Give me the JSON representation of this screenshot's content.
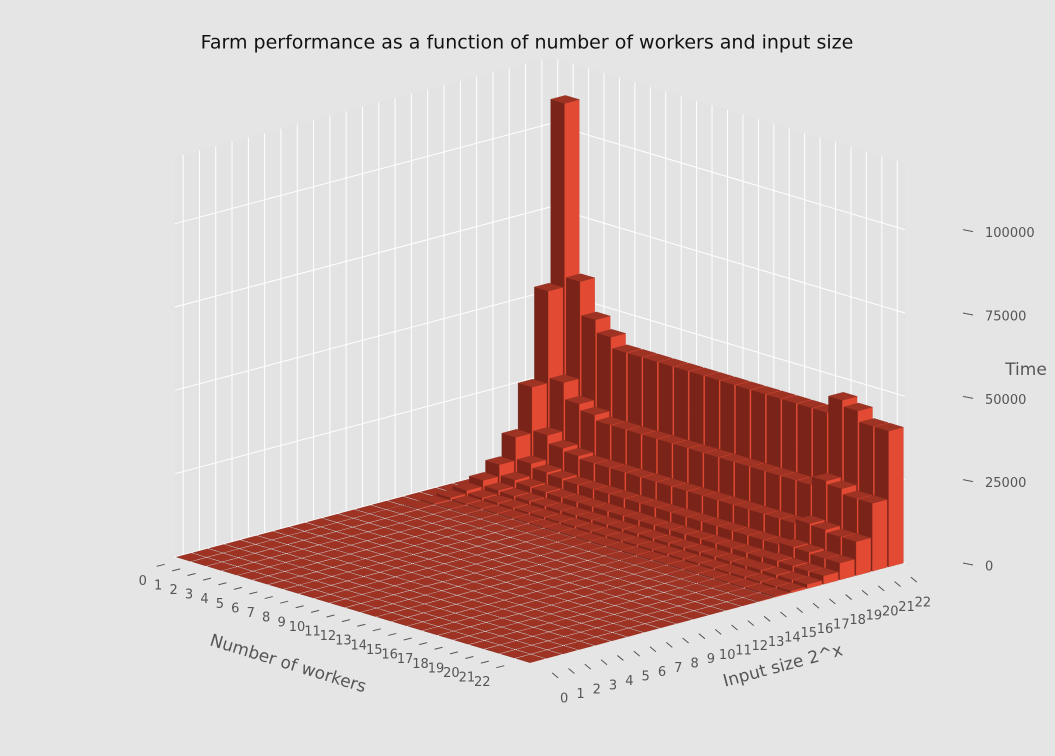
{
  "chart_data": {
    "type": "bar3d",
    "title": "Farm performance as a function of number of workers and input size",
    "xlabel": "Number of workers",
    "ylabel": "Input size 2^x",
    "zlabel": "Time",
    "xticks": [
      0,
      1,
      2,
      3,
      4,
      5,
      6,
      7,
      8,
      9,
      10,
      11,
      12,
      13,
      14,
      15,
      16,
      17,
      18,
      19,
      20,
      21,
      22
    ],
    "yticks": [
      0,
      1,
      2,
      3,
      4,
      5,
      6,
      7,
      8,
      9,
      10,
      11,
      12,
      13,
      14,
      15,
      16,
      17,
      18,
      19,
      20,
      21,
      22
    ],
    "zlim": [
      0,
      120000
    ],
    "zticks": [
      0,
      25000,
      50000,
      75000,
      100000
    ],
    "color": "#e24a33",
    "grid": true,
    "values": [
      [
        0,
        0,
        0,
        0,
        0,
        0,
        0,
        0,
        0,
        0,
        0,
        0,
        0,
        0,
        0,
        0,
        0,
        0,
        0,
        0,
        0,
        0,
        0
      ],
      [
        0,
        0,
        0,
        0,
        0,
        1,
        2,
        3,
        7,
        13,
        27,
        54,
        107,
        215,
        430,
        859,
        1719,
        3438,
        6875,
        13750,
        27500,
        55000,
        110000
      ],
      [
        0,
        0,
        0,
        0,
        0,
        1,
        1,
        2,
        4,
        7,
        14,
        28,
        56,
        113,
        226,
        452,
        905,
        1809,
        3618,
        7237,
        14474,
        28947,
        57895
      ],
      [
        0,
        0,
        0,
        0,
        0,
        0,
        1,
        1,
        3,
        6,
        12,
        23,
        47,
        93,
        187,
        373,
        747,
        1495,
        2989,
        5978,
        11957,
        23913,
        47826
      ],
      [
        0,
        0,
        0,
        0,
        0,
        0,
        1,
        1,
        3,
        5,
        11,
        22,
        43,
        86,
        172,
        344,
        688,
        1375,
        2750,
        5500,
        11000,
        22000,
        44000
      ],
      [
        0,
        0,
        0,
        0,
        0,
        0,
        1,
        1,
        3,
        5,
        10,
        20,
        40,
        80,
        159,
        318,
        637,
        1273,
        2546,
        5093,
        10185,
        20370,
        40741
      ],
      [
        0,
        0,
        0,
        0,
        0,
        0,
        1,
        1,
        3,
        5,
        10,
        20,
        40,
        80,
        159,
        318,
        637,
        1273,
        2546,
        5093,
        10185,
        20370,
        40741
      ],
      [
        0,
        0,
        0,
        0,
        0,
        0,
        1,
        1,
        3,
        5,
        10,
        20,
        40,
        80,
        159,
        318,
        637,
        1273,
        2546,
        5093,
        10185,
        20370,
        40741
      ],
      [
        0,
        0,
        0,
        0,
        0,
        0,
        1,
        1,
        3,
        5,
        10,
        20,
        40,
        80,
        159,
        318,
        637,
        1273,
        2546,
        5093,
        10185,
        20370,
        40741
      ],
      [
        0,
        0,
        0,
        0,
        0,
        0,
        1,
        1,
        3,
        5,
        10,
        20,
        40,
        80,
        159,
        318,
        637,
        1273,
        2546,
        5093,
        10185,
        20370,
        40741
      ],
      [
        0,
        0,
        0,
        0,
        0,
        0,
        1,
        1,
        3,
        5,
        10,
        20,
        40,
        80,
        159,
        318,
        637,
        1273,
        2546,
        5093,
        10185,
        20370,
        40741
      ],
      [
        0,
        0,
        0,
        0,
        0,
        0,
        1,
        1,
        3,
        5,
        10,
        20,
        40,
        80,
        159,
        318,
        637,
        1273,
        2546,
        5093,
        10185,
        20370,
        40741
      ],
      [
        0,
        0,
        0,
        0,
        0,
        0,
        1,
        1,
        3,
        5,
        10,
        20,
        40,
        80,
        159,
        318,
        637,
        1273,
        2546,
        5093,
        10185,
        20370,
        40741
      ],
      [
        0,
        0,
        0,
        0,
        0,
        0,
        1,
        1,
        3,
        5,
        10,
        20,
        40,
        80,
        159,
        318,
        637,
        1273,
        2546,
        5093,
        10185,
        20370,
        40741
      ],
      [
        0,
        0,
        0,
        0,
        0,
        0,
        1,
        1,
        3,
        5,
        10,
        20,
        40,
        80,
        159,
        318,
        637,
        1273,
        2546,
        5093,
        10185,
        20370,
        40741
      ],
      [
        0,
        0,
        0,
        0,
        0,
        0,
        1,
        1,
        3,
        5,
        10,
        20,
        40,
        80,
        159,
        318,
        637,
        1273,
        2546,
        5093,
        10185,
        20370,
        40741
      ],
      [
        0,
        0,
        0,
        0,
        0,
        0,
        1,
        1,
        3,
        5,
        10,
        20,
        40,
        80,
        159,
        318,
        637,
        1273,
        2546,
        5093,
        10185,
        20370,
        40741
      ],
      [
        0,
        0,
        0,
        0,
        0,
        0,
        1,
        1,
        3,
        5,
        10,
        20,
        40,
        80,
        159,
        318,
        637,
        1273,
        2546,
        5093,
        10185,
        20370,
        40741
      ],
      [
        0,
        0,
        0,
        0,
        0,
        0,
        1,
        1,
        3,
        5,
        10,
        20,
        40,
        80,
        159,
        318,
        637,
        1273,
        2546,
        5093,
        10185,
        20370,
        40741
      ],
      [
        0,
        0,
        0,
        0,
        0,
        0,
        1,
        1,
        3,
        5,
        11,
        23,
        45,
        90,
        179,
        358,
        716,
        1433,
        2865,
        5729,
        11458,
        22917,
        45833
      ],
      [
        0,
        0,
        0,
        0,
        0,
        0,
        1,
        1,
        3,
        5,
        11,
        22,
        43,
        86,
        172,
        344,
        688,
        1375,
        2750,
        5500,
        11000,
        22000,
        44000
      ],
      [
        0,
        0,
        0,
        0,
        0,
        0,
        1,
        1,
        3,
        5,
        10,
        20,
        40,
        80,
        159,
        318,
        637,
        1273,
        2546,
        5093,
        10185,
        20370,
        40741
      ],
      [
        0,
        0,
        0,
        0,
        0,
        0,
        1,
        1,
        3,
        5,
        10,
        20,
        40,
        80,
        159,
        318,
        637,
        1273,
        2546,
        5093,
        10185,
        20370,
        40741
      ]
    ]
  }
}
